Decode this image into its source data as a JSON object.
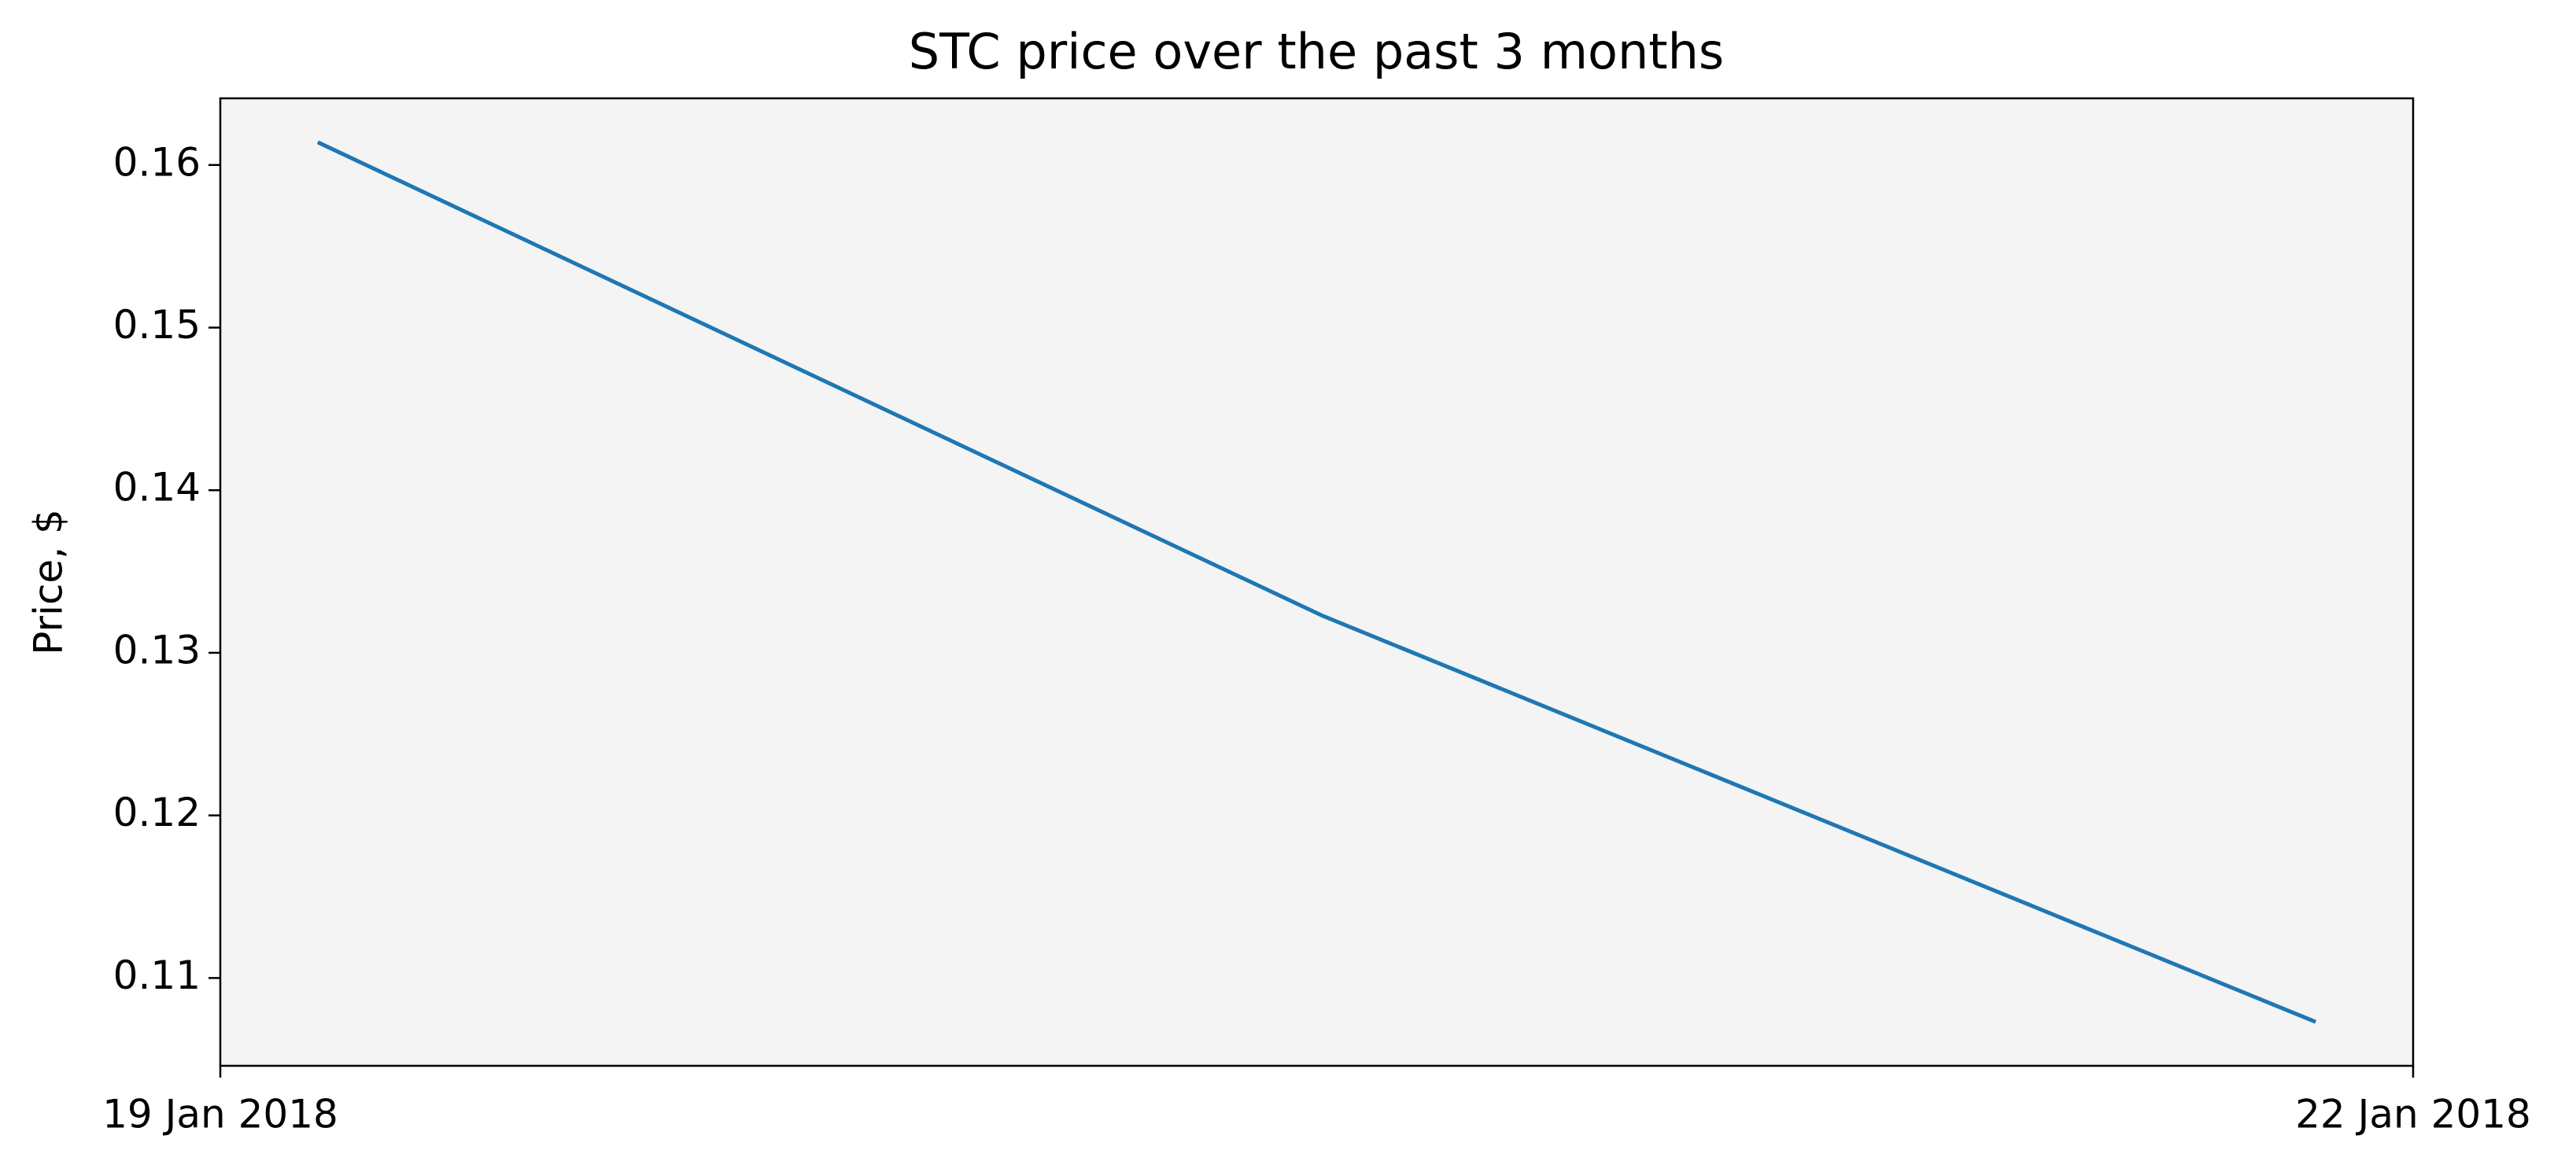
{
  "chart_data": {
    "type": "line",
    "title": "STC price over the past 3 months",
    "y_label": "Price, $",
    "x": [
      "2018-01-19T03:12",
      "2018-01-20T12:10",
      "2018-01-21T20:48"
    ],
    "series": [
      {
        "name": "STC",
        "color": "#1f77b4",
        "values": [
          0.1614,
          0.1323,
          0.1073
        ]
      }
    ],
    "xlim": [
      "2018-01-19",
      "2018-01-22"
    ],
    "xticks": [
      {
        "value": "2018-01-19",
        "label": "19 Jan 2018"
      },
      {
        "value": "2018-01-22",
        "label": "22 Jan 2018"
      }
    ],
    "ylim": [
      0.1046,
      0.1641
    ],
    "yticks": [
      0.11,
      0.12,
      0.13,
      0.14,
      0.15,
      0.16
    ],
    "grid": false,
    "background": "#f4f4f4"
  }
}
